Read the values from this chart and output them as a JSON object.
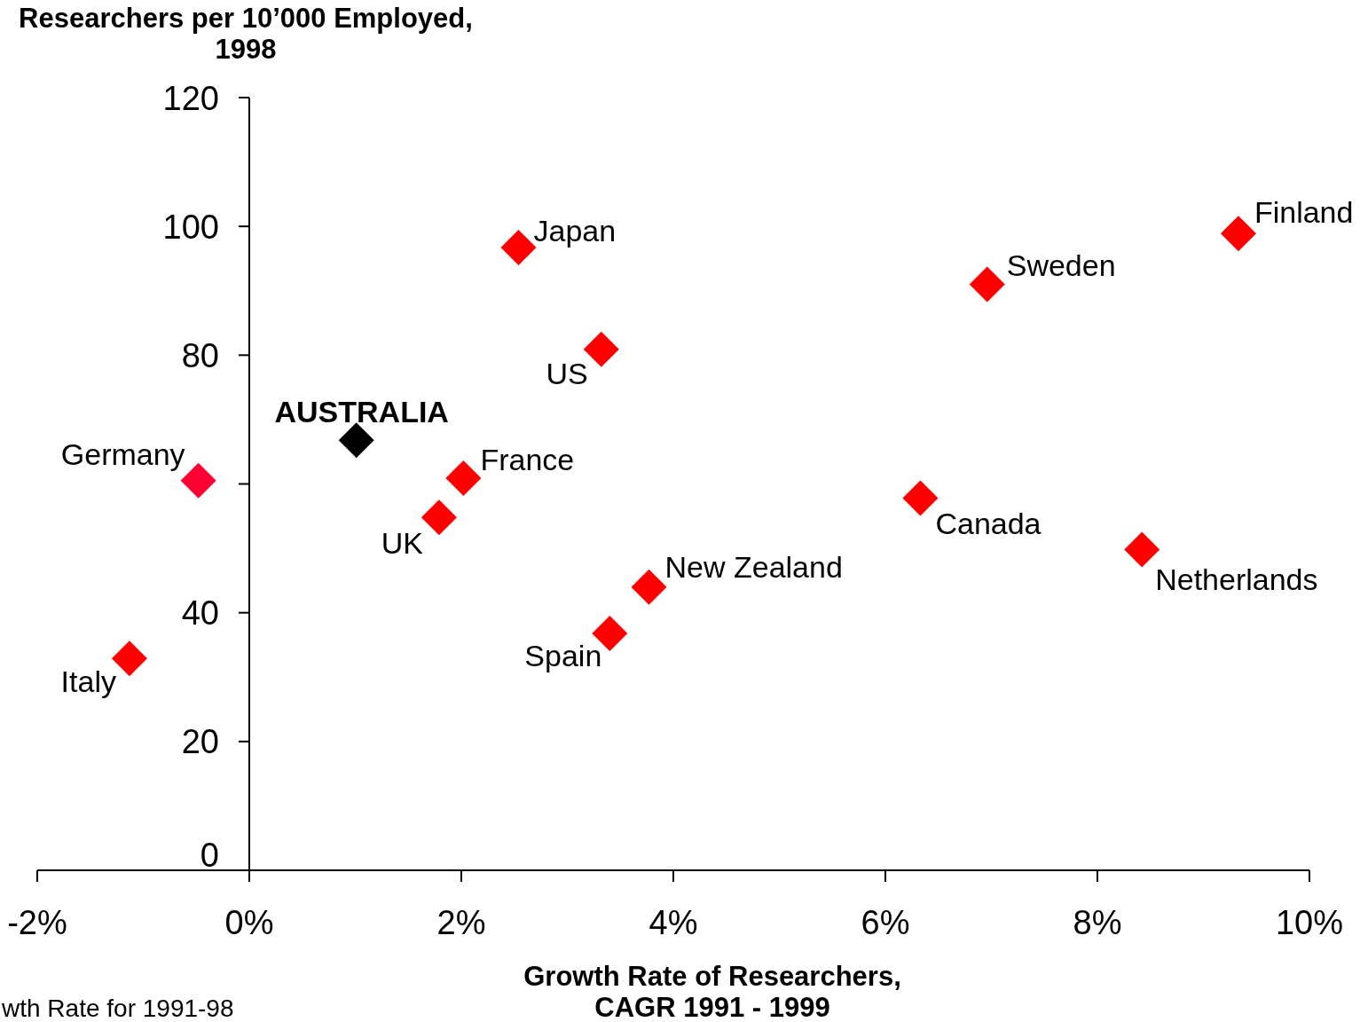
{
  "chart_data": {
    "type": "scatter",
    "ylabel": "Researchers per 10’000 Employed, 1998",
    "xlabel": "Growth Rate of Researchers, CAGR 1991 - 1999",
    "annotations": [
      "wth Rate for 1991-98"
    ],
    "marker": "diamond",
    "xlim": [
      -2,
      10
    ],
    "xticks": [
      {
        "value": -2,
        "label": "-2%"
      },
      {
        "value": 0,
        "label": "0%"
      },
      {
        "value": 2,
        "label": "2%"
      },
      {
        "value": 4,
        "label": "4%"
      },
      {
        "value": 6,
        "label": "6%"
      },
      {
        "value": 8,
        "label": "8%"
      },
      {
        "value": 10,
        "label": "10%"
      }
    ],
    "ylim": [
      0,
      120
    ],
    "yticks": [
      0,
      20,
      40,
      {
        "value": 60,
        "label": null
      },
      80,
      100,
      120
    ],
    "series": [
      {
        "name": "Japan",
        "color": "#ff0000",
        "x": [
          2.54
        ],
        "values": [
          96.7
        ]
      },
      {
        "name": "US",
        "color": "#ff0000",
        "x": [
          3.32
        ],
        "values": [
          80.9
        ]
      },
      {
        "name": "AUSTRALIA",
        "color": "#000000",
        "x": [
          1.01
        ],
        "values": [
          66.8
        ]
      },
      {
        "name": "Germany",
        "color": "#ff0033",
        "x": [
          -0.48
        ],
        "values": [
          60.5
        ]
      },
      {
        "name": "France",
        "color": "#ff0000",
        "x": [
          2.02
        ],
        "values": [
          60.9
        ]
      },
      {
        "name": "UK",
        "color": "#ff0000",
        "x": [
          1.79
        ],
        "values": [
          54.8
        ]
      },
      {
        "name": "New Zealand",
        "color": "#ff0000",
        "x": [
          3.77
        ],
        "values": [
          44.0
        ]
      },
      {
        "name": "Spain",
        "color": "#ff0000",
        "x": [
          3.4
        ],
        "values": [
          36.8
        ]
      },
      {
        "name": "Italy",
        "color": "#ff0000",
        "x": [
          -1.13
        ],
        "values": [
          32.9
        ]
      },
      {
        "name": "Canada",
        "color": "#ff0000",
        "x": [
          6.33
        ],
        "values": [
          57.8
        ]
      },
      {
        "name": "Netherlands",
        "color": "#ff0000",
        "x": [
          8.42
        ],
        "values": [
          49.8
        ]
      },
      {
        "name": "Sweden",
        "color": "#ff0000",
        "x": [
          6.96
        ],
        "values": [
          91.0
        ]
      },
      {
        "name": "Finland",
        "color": "#ff0000",
        "x": [
          9.33
        ],
        "values": [
          98.9
        ]
      }
    ]
  }
}
